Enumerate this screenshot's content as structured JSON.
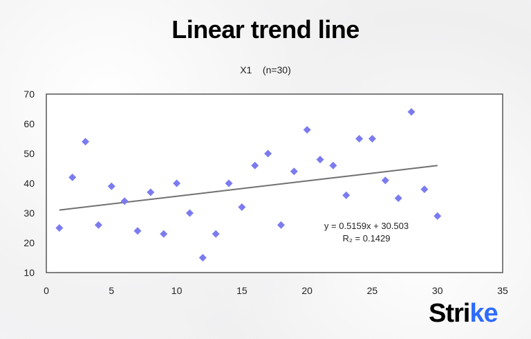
{
  "chart_data": {
    "type": "scatter",
    "title": "Linear trend line",
    "subtitle": "X1    (n=30)",
    "xlim": [
      0,
      35
    ],
    "ylim": [
      10,
      70
    ],
    "xticks": [
      0,
      5,
      10,
      15,
      20,
      25,
      30,
      35
    ],
    "yticks": [
      10,
      20,
      30,
      40,
      50,
      60,
      70
    ],
    "grid": false,
    "marker_color": "#7b7bf0",
    "trend_color": "#707070",
    "x": [
      1,
      2,
      3,
      4,
      5,
      6,
      7,
      8,
      9,
      10,
      11,
      12,
      13,
      14,
      15,
      16,
      17,
      18,
      19,
      20,
      21,
      22,
      23,
      24,
      25,
      26,
      27,
      28,
      29,
      30
    ],
    "y": [
      25,
      42,
      54,
      26,
      39,
      34,
      24,
      37,
      23,
      40,
      30,
      15,
      23,
      40,
      32,
      46,
      50,
      26,
      44,
      58,
      48,
      46,
      36,
      55,
      55,
      41,
      35,
      64,
      38,
      29
    ],
    "trendline": {
      "slope": 0.5159,
      "intercept": 30.503,
      "x_range": [
        1,
        30
      ]
    },
    "equation_label": "y = 0.5159x + 30.503",
    "r2_label": "R₂ = 0.1429"
  },
  "logo": {
    "text_main": "Stri",
    "text_accent": "ke",
    "accent_color": "#2f6bff"
  }
}
